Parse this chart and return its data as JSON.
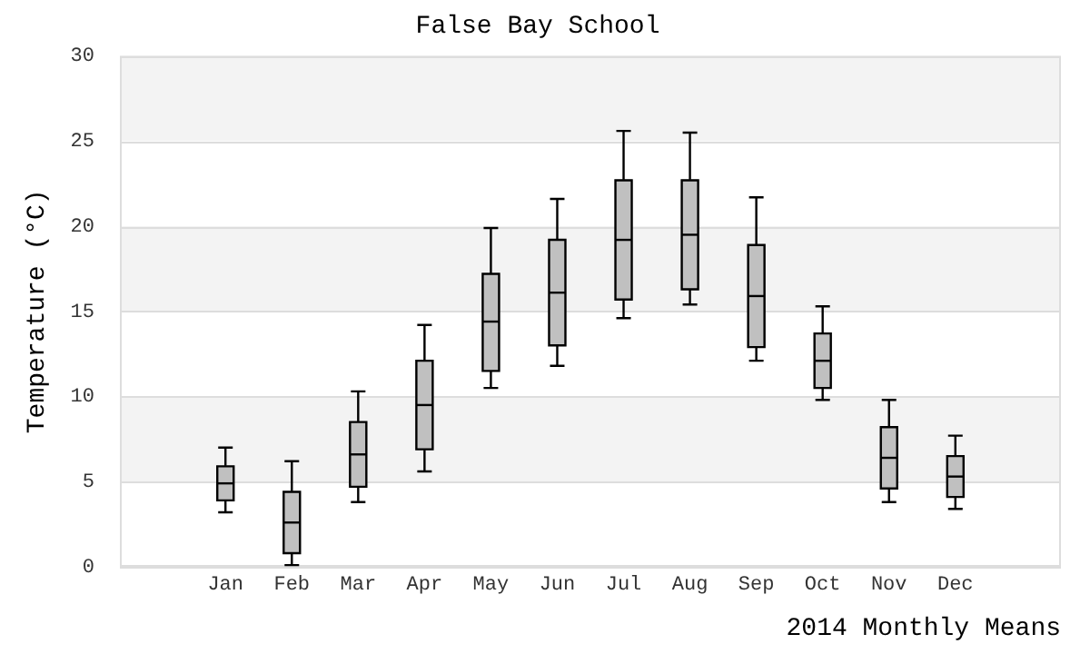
{
  "chart_data": {
    "type": "box",
    "title": "False Bay School",
    "xlabel": "2014 Monthly Means",
    "ylabel": "Temperature (°C)",
    "categories": [
      "Jan",
      "Feb",
      "Mar",
      "Apr",
      "May",
      "Jun",
      "Jul",
      "Aug",
      "Sep",
      "Oct",
      "Nov",
      "Dec"
    ],
    "color": "#c0c0c0",
    "boxes": [
      {
        "low": 3.2,
        "q1": 3.9,
        "median": 4.9,
        "q3": 5.9,
        "high": 7.0
      },
      {
        "low": 0.1,
        "q1": 0.8,
        "median": 2.6,
        "q3": 4.4,
        "high": 6.2
      },
      {
        "low": 3.8,
        "q1": 4.7,
        "median": 6.6,
        "q3": 8.5,
        "high": 10.3
      },
      {
        "low": 5.6,
        "q1": 6.9,
        "median": 9.5,
        "q3": 12.1,
        "high": 14.2
      },
      {
        "low": 10.5,
        "q1": 11.5,
        "median": 14.4,
        "q3": 17.2,
        "high": 19.9
      },
      {
        "low": 11.8,
        "q1": 13.0,
        "median": 16.1,
        "q3": 19.2,
        "high": 21.6
      },
      {
        "low": 14.6,
        "q1": 15.7,
        "median": 19.2,
        "q3": 22.7,
        "high": 25.6
      },
      {
        "low": 15.4,
        "q1": 16.3,
        "median": 19.5,
        "q3": 22.7,
        "high": 25.5
      },
      {
        "low": 12.1,
        "q1": 12.9,
        "median": 15.9,
        "q3": 18.9,
        "high": 21.7
      },
      {
        "low": 9.8,
        "q1": 10.5,
        "median": 12.1,
        "q3": 13.7,
        "high": 15.3
      },
      {
        "low": 3.8,
        "q1": 4.6,
        "median": 6.4,
        "q3": 8.2,
        "high": 9.8
      },
      {
        "low": 3.4,
        "q1": 4.1,
        "median": 5.3,
        "q3": 6.5,
        "high": 7.7
      }
    ],
    "ylim": [
      0,
      30
    ],
    "yticks": [
      0,
      5,
      10,
      15,
      20,
      25,
      30
    ],
    "grid": "y",
    "legend": false
  }
}
